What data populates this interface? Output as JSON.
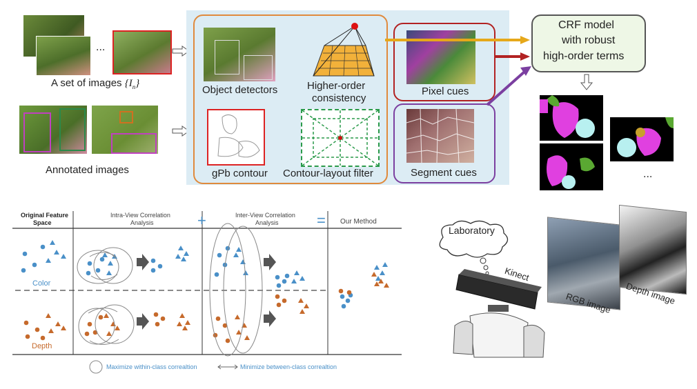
{
  "top": {
    "image_set_label": "A set of images",
    "image_set_symbol": "{I",
    "image_set_sub": "n",
    "image_set_close": "}",
    "ellipsis": "...",
    "annotated_label": "Annotated images",
    "object_detectors": "Object detectors",
    "higher_order_line1": "Higher-order",
    "higher_order_line2": "consistency",
    "gpb_contour": "gPb contour",
    "contour_layout": "Contour-layout filter",
    "pixel_cues": "Pixel cues",
    "segment_cues": "Segment cues",
    "crf_line1": "CRF model",
    "crf_line2": "with robust",
    "crf_line3": "high-order terms",
    "results_ellipsis": "...",
    "colors": {
      "panel_bg": "#dcecf4",
      "panel_border": "#e08a3c",
      "pixel_border": "#b22222",
      "segment_border": "#7b3fa0",
      "crf_bg": "#eef7e6",
      "magenta": "#e040e0",
      "green": "#5aa832",
      "cyan": "#b8f0f0",
      "olive": "#c8a02c"
    }
  },
  "bottom_left": {
    "col0_line1": "Original Feature",
    "col0_line2": "Space",
    "col1_line1": "Intra-View Correlation",
    "col1_line2": "Analysis",
    "plus": "+",
    "col2_line1": "Inter-View Correlation",
    "col2_line2": "Analysis",
    "equals": "=",
    "col3": "Our Method",
    "row_color": "Color",
    "row_depth": "Depth",
    "legend_circle": "Maximize within-class correaltion",
    "legend_arrow": "Minimize between-class correaltion",
    "colors": {
      "blue": "#4a90c8",
      "orange": "#c66a2c"
    }
  },
  "bottom_right": {
    "thought": "Laboratory",
    "kinect": "Kinect",
    "rgb_label": "RGB image",
    "depth_label": "Depth image"
  }
}
